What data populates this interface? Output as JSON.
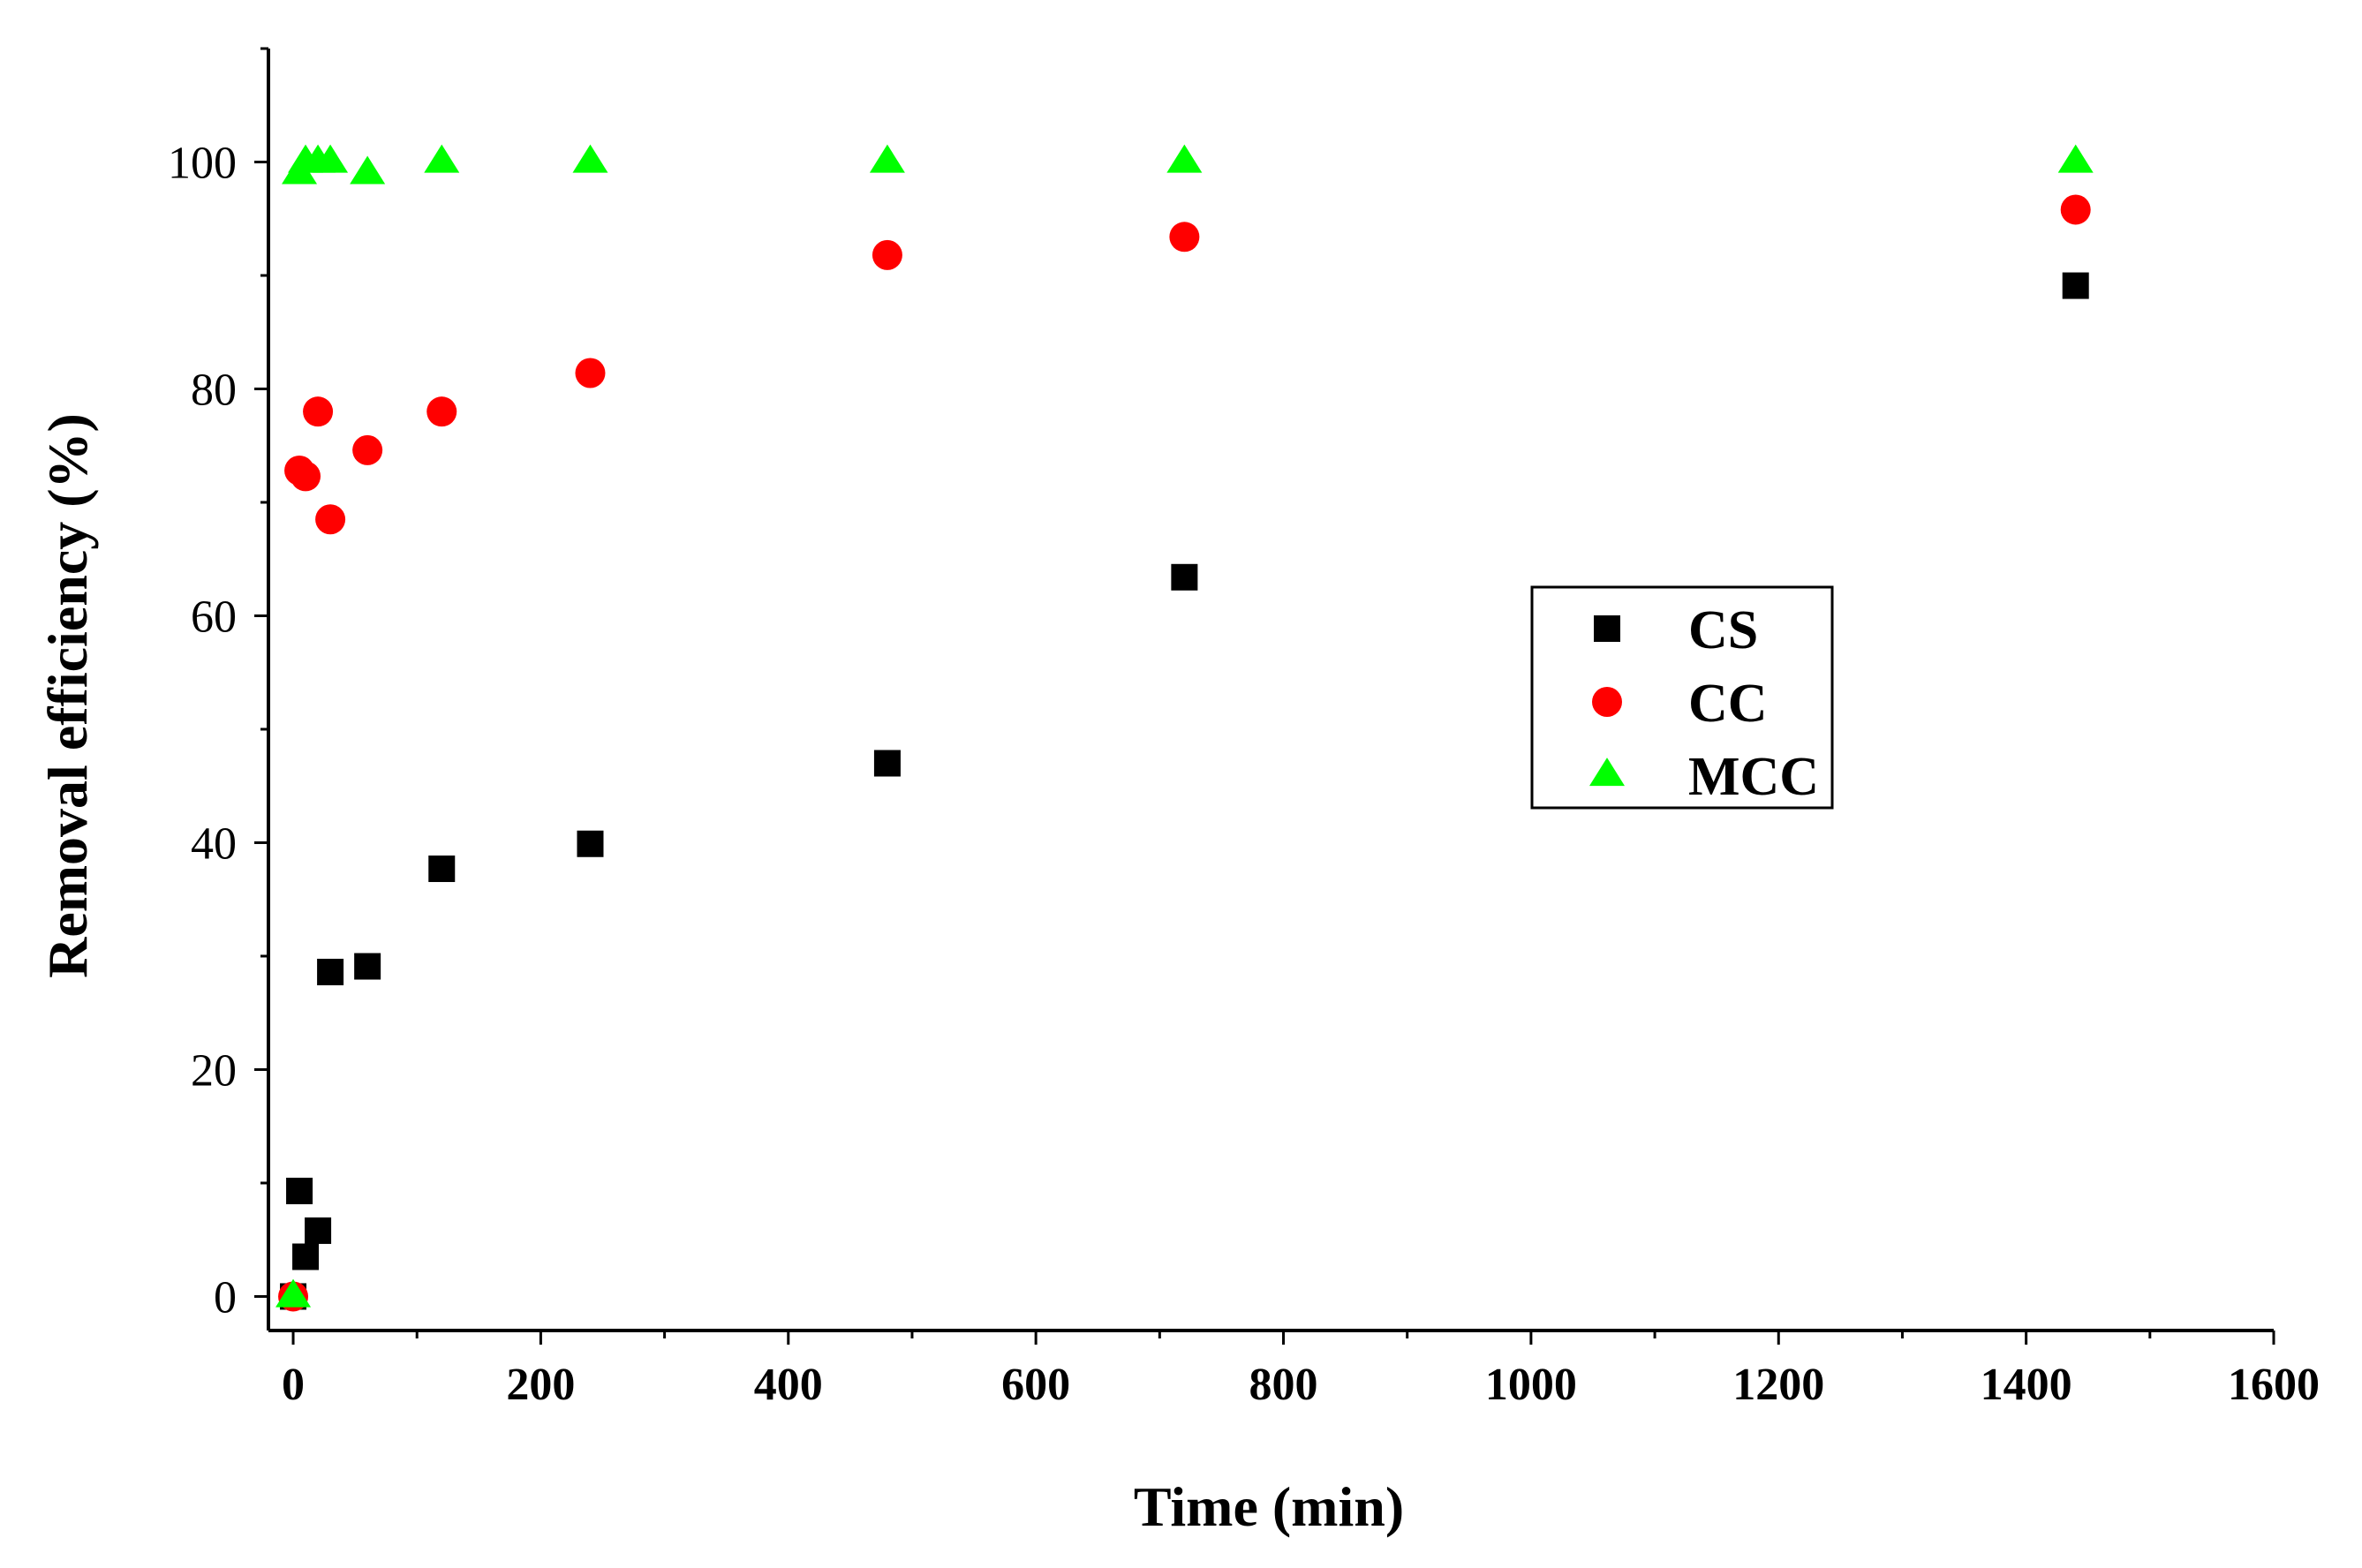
{
  "chart_data": {
    "type": "scatter",
    "title": "",
    "xlabel": "Time (min)",
    "ylabel": "Removal efficiency (%)",
    "xlim": [
      -20,
      1600
    ],
    "ylim": [
      -3,
      110
    ],
    "xticks": [
      0,
      200,
      400,
      600,
      800,
      1000,
      1200,
      1400,
      1600
    ],
    "yticks": [
      0,
      20,
      40,
      60,
      80,
      100
    ],
    "xtick_labels": [
      "0",
      "200",
      "400",
      "600",
      "800",
      "1000",
      "1200",
      "1400",
      "1600"
    ],
    "ytick_labels": [
      "0",
      "20",
      "40",
      "60",
      "80",
      "100"
    ],
    "x_minor_ticks": [
      100,
      300,
      500,
      700,
      900,
      1100,
      1300,
      1500
    ],
    "y_minor_ticks": [
      10,
      30,
      50,
      70,
      90,
      110
    ],
    "grid": false,
    "legend_position": "center-right",
    "series": [
      {
        "name": "CS",
        "marker": "square",
        "color": "#000000",
        "x": [
          0,
          5,
          10,
          20,
          30,
          60,
          120,
          240,
          480,
          720,
          1440
        ],
        "y": [
          0,
          9.3,
          3.5,
          5.8,
          28.6,
          29.1,
          37.7,
          39.9,
          47.0,
          63.4,
          89.1
        ]
      },
      {
        "name": "CC",
        "marker": "circle",
        "color": "#ff0000",
        "x": [
          0,
          5,
          10,
          20,
          30,
          60,
          120,
          240,
          480,
          720,
          1440
        ],
        "y": [
          0,
          72.8,
          72.3,
          78.0,
          68.5,
          74.6,
          78.0,
          81.4,
          91.8,
          93.4,
          95.8
        ]
      },
      {
        "name": "MCC",
        "marker": "triangle",
        "color": "#00ff00",
        "x": [
          0,
          5,
          10,
          20,
          30,
          60,
          120,
          240,
          480,
          720,
          1440
        ],
        "y": [
          0,
          99.0,
          100.0,
          100.0,
          100.0,
          99.0,
          100.0,
          100.0,
          100.0,
          100.0,
          100.0
        ]
      }
    ]
  }
}
